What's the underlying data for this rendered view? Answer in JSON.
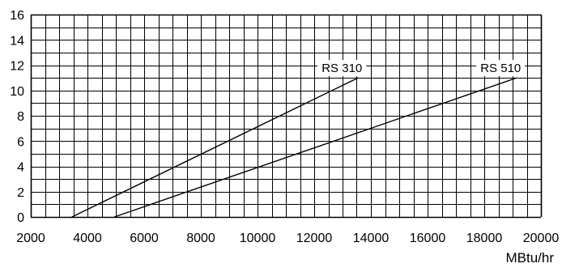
{
  "chart_data": {
    "type": "line",
    "title": "",
    "xlabel": "MBtu/hr",
    "ylabel": "",
    "xlim": [
      2000,
      20000
    ],
    "ylim": [
      0,
      16
    ],
    "x_ticks": [
      2000,
      4000,
      6000,
      8000,
      10000,
      12000,
      14000,
      16000,
      18000,
      20000
    ],
    "x_tick_labels": [
      "2000",
      "4000",
      "6000",
      "8000",
      "10000",
      "12000",
      "14000",
      "16000",
      "18000",
      "20000"
    ],
    "y_ticks": [
      0,
      2,
      4,
      6,
      8,
      10,
      12,
      14,
      16
    ],
    "y_tick_labels": [
      "0",
      "2",
      "4",
      "6",
      "8",
      "10",
      "12",
      "14",
      "16"
    ],
    "grid": true,
    "grid_minor_step": {
      "x": 500,
      "y": 1
    },
    "legend": "none",
    "series": [
      {
        "name": "RS 310",
        "x": [
          3450,
          13550
        ],
        "y": [
          0,
          11
        ]
      },
      {
        "name": "RS 510",
        "x": [
          4950,
          19150
        ],
        "y": [
          0,
          11
        ]
      }
    ],
    "colors": {
      "line": "#000000",
      "grid": "#000000",
      "background": "#ffffff"
    }
  }
}
